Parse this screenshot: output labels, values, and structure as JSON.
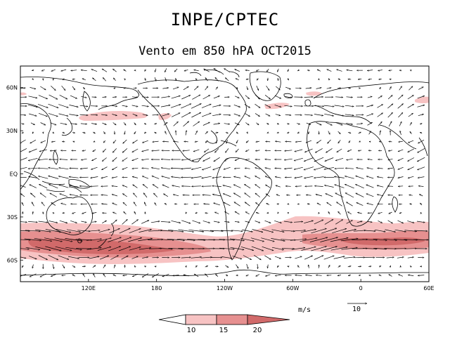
{
  "header": {
    "title": "INPE/CPTEC",
    "subtitle": "Vento em 850 hPA OCT2015"
  },
  "map": {
    "projection": "cylindrical",
    "lon_range": [
      60,
      420
    ],
    "lat_range": [
      -75,
      75
    ],
    "lat_ticks": [
      {
        "lat": 60,
        "label": "60N"
      },
      {
        "lat": 30,
        "label": "30N"
      },
      {
        "lat": 0,
        "label": "EQ"
      },
      {
        "lat": -30,
        "label": "30S"
      },
      {
        "lat": -60,
        "label": "60S"
      }
    ],
    "lon_ticks": [
      {
        "lon": 120,
        "label": "120E"
      },
      {
        "lon": 180,
        "label": "180"
      },
      {
        "lon": 240,
        "label": "120W"
      },
      {
        "lon": 300,
        "label": "60W"
      },
      {
        "lon": 360,
        "label": "0"
      },
      {
        "lon": 420,
        "label": "60E"
      }
    ],
    "colors": {
      "shade_10_15": "#f7c3c3",
      "shade_15_20": "#e69090",
      "shade_20_plus": "#d16a6a",
      "coast": "#000000",
      "vector": "#000000"
    }
  },
  "legend": {
    "units": "m/s",
    "labels": [
      "10",
      "15",
      "20"
    ],
    "reference_vector_label": "10"
  }
}
